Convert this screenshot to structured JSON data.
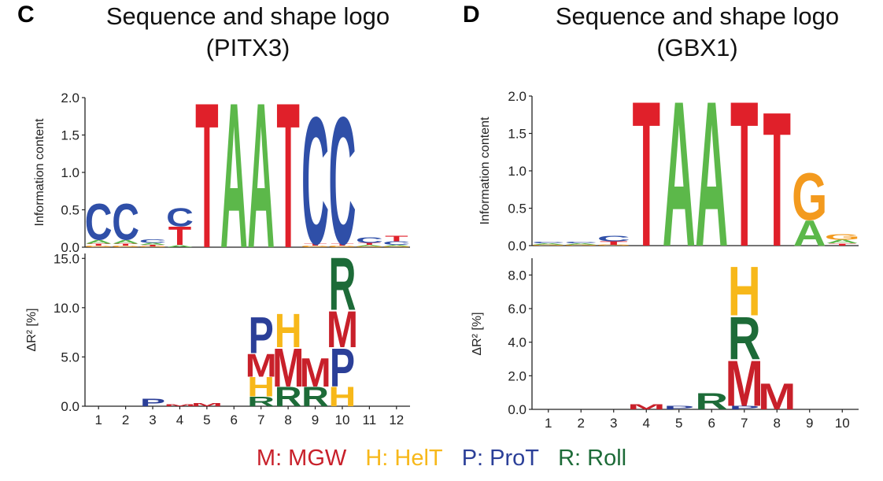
{
  "panels": [
    {
      "letter": "C",
      "title_line1": "Sequence and shape logo",
      "title_line2": "(PITX3)"
    },
    {
      "letter": "D",
      "title_line1": "Sequence and shape logo",
      "title_line2": "(GBX1)"
    }
  ],
  "legend": [
    {
      "text": "M: MGW",
      "color": "#c8202a"
    },
    {
      "text": "H: HelT",
      "color": "#f7b81a"
    },
    {
      "text": "P: ProT",
      "color": "#2b3f98"
    },
    {
      "text": "R: Roll",
      "color": "#1d6b38"
    }
  ],
  "colors": {
    "A": "#5cb84a",
    "C": "#2f4fa8",
    "G": "#f39a1e",
    "T": "#e0202a",
    "M": "#c8202a",
    "H": "#f7b81a",
    "P": "#2b3f98",
    "R": "#1d6b38"
  },
  "chart_data": [
    {
      "type": "sequence-logo",
      "panel": "C",
      "positions": [
        "1",
        "2",
        "3",
        "4",
        "5",
        "6",
        "7",
        "8",
        "9",
        "10",
        "11",
        "12"
      ],
      "sequence_logo": {
        "ylabel": "Information content",
        "ylim": [
          0,
          2.0
        ],
        "yticks": [
          "0.0",
          "0.5",
          "1.0",
          "1.5",
          "2.0"
        ],
        "stacks": [
          [
            [
              "G",
              0.02
            ],
            [
              "T",
              0.03
            ],
            [
              "A",
              0.05
            ],
            [
              "C",
              0.5
            ]
          ],
          [
            [
              "G",
              0.02
            ],
            [
              "T",
              0.03
            ],
            [
              "A",
              0.05
            ],
            [
              "C",
              0.5
            ]
          ],
          [
            [
              "G",
              0.01
            ],
            [
              "T",
              0.02
            ],
            [
              "A",
              0.03
            ],
            [
              "C",
              0.05
            ]
          ],
          [
            [
              "A",
              0.03
            ],
            [
              "T",
              0.25
            ],
            [
              "C",
              0.25
            ]
          ],
          [
            [
              "T",
              2.0
            ]
          ],
          [
            [
              "A",
              2.0
            ]
          ],
          [
            [
              "A",
              2.0
            ]
          ],
          [
            [
              "T",
              2.0
            ]
          ],
          [
            [
              "G",
              0.02
            ],
            [
              "T",
              0.03
            ],
            [
              "C",
              1.75
            ]
          ],
          [
            [
              "G",
              0.02
            ],
            [
              "T",
              0.03
            ],
            [
              "C",
              1.75
            ]
          ],
          [
            [
              "G",
              0.01
            ],
            [
              "A",
              0.02
            ],
            [
              "T",
              0.03
            ],
            [
              "C",
              0.08
            ]
          ],
          [
            [
              "G",
              0.01
            ],
            [
              "A",
              0.02
            ],
            [
              "C",
              0.05
            ],
            [
              "T",
              0.08
            ]
          ]
        ]
      },
      "shape_logo": {
        "ylabel": "ΔR² [%]",
        "ylim": [
          0,
          15.5
        ],
        "yticks": [
          "0.0",
          "5.0",
          "10.0",
          "15.0"
        ],
        "stacks": [
          [],
          [],
          [
            [
              "P",
              0.8
            ]
          ],
          [
            [
              "M",
              0.2
            ]
          ],
          [
            [
              "M",
              0.3
            ]
          ],
          [],
          [
            [
              "R",
              1.0
            ],
            [
              "H",
              2.0
            ],
            [
              "M",
              2.4
            ],
            [
              "P",
              3.8
            ]
          ],
          [
            [
              "R",
              2.0
            ],
            [
              "M",
              4.0
            ],
            [
              "H",
              3.5
            ]
          ],
          [
            [
              "R",
              2.0
            ],
            [
              "M",
              3.0
            ]
          ],
          [
            [
              "H",
              2.0
            ],
            [
              "P",
              4.0
            ],
            [
              "M",
              3.8
            ],
            [
              "R",
              5.5
            ]
          ],
          [],
          []
        ]
      }
    },
    {
      "type": "sequence-logo",
      "panel": "D",
      "positions": [
        "1",
        "2",
        "3",
        "4",
        "5",
        "6",
        "7",
        "8",
        "9",
        "10"
      ],
      "sequence_logo": {
        "ylabel": "Information content",
        "ylim": [
          0,
          2.0
        ],
        "yticks": [
          "0.0",
          "0.5",
          "1.0",
          "1.5",
          "2.0"
        ],
        "stacks": [
          [
            [
              "G",
              0.01
            ],
            [
              "A",
              0.02
            ],
            [
              "C",
              0.02
            ]
          ],
          [
            [
              "G",
              0.01
            ],
            [
              "A",
              0.02
            ],
            [
              "C",
              0.02
            ]
          ],
          [
            [
              "G",
              0.01
            ],
            [
              "T",
              0.05
            ],
            [
              "C",
              0.08
            ]
          ],
          [
            [
              "T",
              2.0
            ]
          ],
          [
            [
              "A",
              2.0
            ]
          ],
          [
            [
              "A",
              2.0
            ]
          ],
          [
            [
              "T",
              2.0
            ]
          ],
          [
            [
              "T",
              1.85
            ]
          ],
          [
            [
              "A",
              0.35
            ],
            [
              "G",
              0.65
            ]
          ],
          [
            [
              "T",
              0.03
            ],
            [
              "A",
              0.05
            ],
            [
              "G",
              0.08
            ]
          ]
        ]
      },
      "shape_logo": {
        "ylabel": "ΔR² [%]",
        "ylim": [
          0,
          9.0
        ],
        "yticks": [
          "0.0",
          "2.0",
          "4.0",
          "6.0",
          "8.0"
        ],
        "stacks": [
          [],
          [],
          [],
          [
            [
              "M",
              0.3
            ]
          ],
          [
            [
              "P",
              0.2
            ]
          ],
          [
            [
              "R",
              1.0
            ]
          ],
          [
            [
              "P",
              0.2
            ],
            [
              "M",
              2.8
            ],
            [
              "R",
              2.6
            ],
            [
              "H",
              3.0
            ]
          ],
          [
            [
              "M",
              1.6
            ]
          ],
          [],
          []
        ]
      }
    }
  ]
}
